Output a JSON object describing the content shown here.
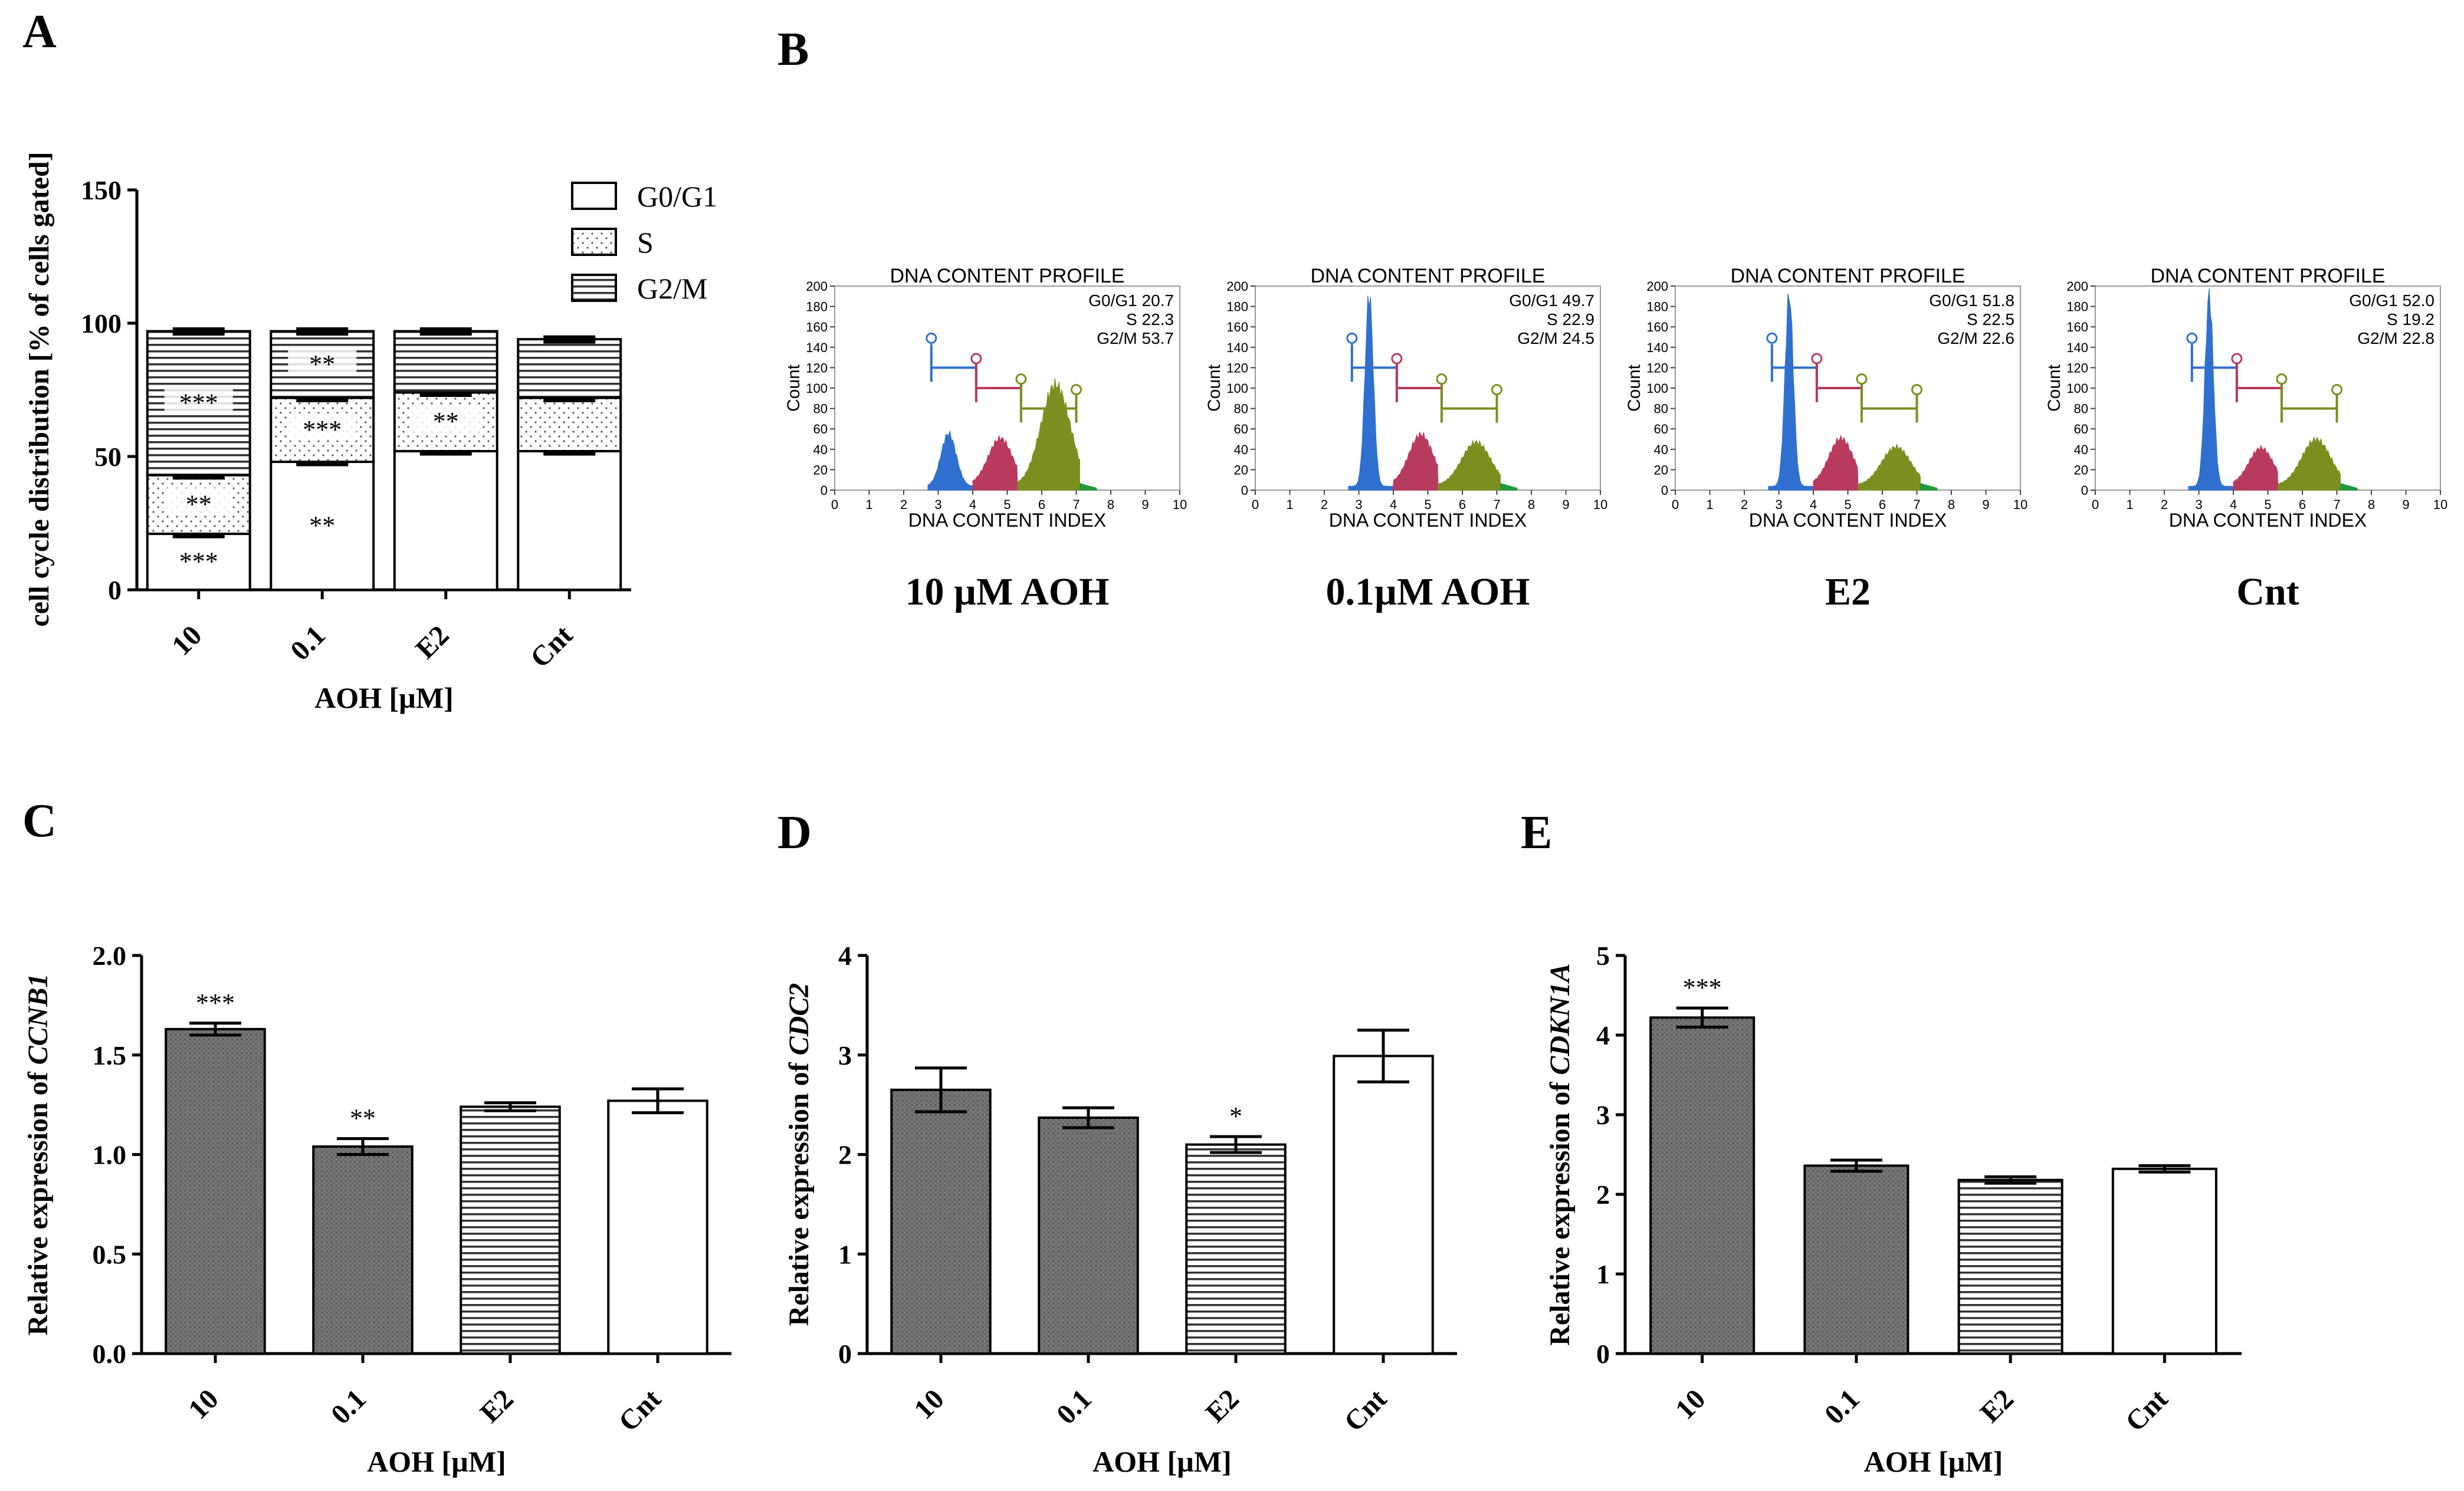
{
  "chart_data": [
    {
      "panel": "A",
      "type": "bar",
      "stacked": true,
      "categories": [
        "10",
        "0.1",
        "E2",
        "Cnt"
      ],
      "xlabel": "AOH [µM]",
      "ylabel": "cell cycle distribution [% of cells gated]",
      "ylim": [
        0,
        150
      ],
      "yticks": [
        "0",
        "50",
        "100",
        "150"
      ],
      "legend_position": "top-right",
      "series": [
        {
          "name": "G0/G1",
          "values": [
            21,
            48,
            52,
            52
          ],
          "errors": [
            1,
            1,
            1,
            1
          ],
          "pattern": "white",
          "annotations": [
            "***",
            "**",
            "",
            ""
          ]
        },
        {
          "name": "S",
          "values": [
            22,
            24,
            22,
            20
          ],
          "errors": [
            1,
            1,
            1,
            1
          ],
          "pattern": "dots",
          "annotations": [
            "**",
            "***",
            "**",
            ""
          ]
        },
        {
          "name": "G2/M",
          "values": [
            54,
            25,
            23,
            22
          ],
          "errors": [
            1,
            1,
            1,
            1
          ],
          "pattern": "hlines",
          "annotations": [
            "***",
            "**",
            "",
            ""
          ]
        }
      ]
    },
    {
      "panel": "C",
      "type": "bar",
      "categories": [
        "10",
        "0.1",
        "E2",
        "Cnt"
      ],
      "values": [
        1.63,
        1.04,
        1.24,
        1.27
      ],
      "errors": [
        0.03,
        0.04,
        0.02,
        0.06
      ],
      "annotations": [
        "***",
        "**",
        "",
        ""
      ],
      "patterns": [
        "gray",
        "gray",
        "hlines",
        "white"
      ],
      "xlabel": "AOH [µM]",
      "ylabel_prefix": "Relative expression of ",
      "ylabel_gene": "CCNB1",
      "ylim": [
        0,
        2.0
      ],
      "yticks": [
        "0.0",
        "0.5",
        "1.0",
        "1.5",
        "2.0"
      ]
    },
    {
      "panel": "D",
      "type": "bar",
      "categories": [
        "10",
        "0.1",
        "E2",
        "Cnt"
      ],
      "values": [
        2.65,
        2.37,
        2.1,
        2.99
      ],
      "errors": [
        0.22,
        0.1,
        0.08,
        0.26
      ],
      "annotations": [
        "",
        "",
        "*",
        ""
      ],
      "patterns": [
        "gray",
        "gray",
        "hlines",
        "white"
      ],
      "xlabel": "AOH [µM]",
      "ylabel_prefix": "Relative expression of ",
      "ylabel_gene": "CDC2",
      "ylim": [
        0,
        4
      ],
      "yticks": [
        "0",
        "1",
        "2",
        "3",
        "4"
      ]
    },
    {
      "panel": "E",
      "type": "bar",
      "categories": [
        "10",
        "0.1",
        "E2",
        "Cnt"
      ],
      "values": [
        4.22,
        2.36,
        2.18,
        2.32
      ],
      "errors": [
        0.12,
        0.07,
        0.04,
        0.04
      ],
      "annotations": [
        "***",
        "",
        "",
        ""
      ],
      "patterns": [
        "gray",
        "gray",
        "hlines",
        "white"
      ],
      "xlabel": "AOH [µM]",
      "ylabel_prefix": "Relative expression of ",
      "ylabel_gene": "CDKN1A",
      "ylim": [
        0,
        5
      ],
      "yticks": [
        "0",
        "1",
        "2",
        "3",
        "4",
        "5"
      ]
    }
  ],
  "histograms": {
    "panel": "B",
    "title": "DNA CONTENT PROFILE",
    "xlabel": "DNA CONTENT INDEX",
    "ylabel": "Count",
    "yticks": [
      "0",
      "20",
      "40",
      "60",
      "80",
      "100",
      "120",
      "140",
      "160",
      "180",
      "200"
    ],
    "xticks": [
      "0",
      "1",
      "2",
      "3",
      "4",
      "5",
      "6",
      "7",
      "8",
      "9",
      "10"
    ],
    "ylim": [
      0,
      200
    ],
    "xlim": [
      0,
      10
    ],
    "colors": {
      "g1": "#2f6fcf",
      "s": "#b83a5e",
      "g2": "#7a8f1f",
      "tail": "#1f9a3a"
    },
    "panels": [
      {
        "caption": "10 µM AOH",
        "stats": [
          "G0/G1 20.7",
          "S 22.3",
          "G2/M 53.7"
        ],
        "g1_peak": 55,
        "s_peak": 48,
        "g2_peak": 105
      },
      {
        "caption": "0.1µM AOH",
        "stats": [
          "G0/G1 49.7",
          "S 22.9",
          "G2/M 24.5"
        ],
        "g1_peak": 200,
        "s_peak": 52,
        "g2_peak": 45
      },
      {
        "caption": "E2",
        "stats": [
          "G0/G1 51.8",
          "S 22.5",
          "G2/M 22.6"
        ],
        "g1_peak": 200,
        "s_peak": 48,
        "g2_peak": 40
      },
      {
        "caption": "Cnt",
        "stats": [
          "G0/G1 52.0",
          "S 19.2",
          "G2/M 22.8"
        ],
        "g1_peak": 200,
        "s_peak": 38,
        "g2_peak": 48
      }
    ]
  },
  "panel_letters": [
    "A",
    "B",
    "C",
    "D",
    "E"
  ]
}
